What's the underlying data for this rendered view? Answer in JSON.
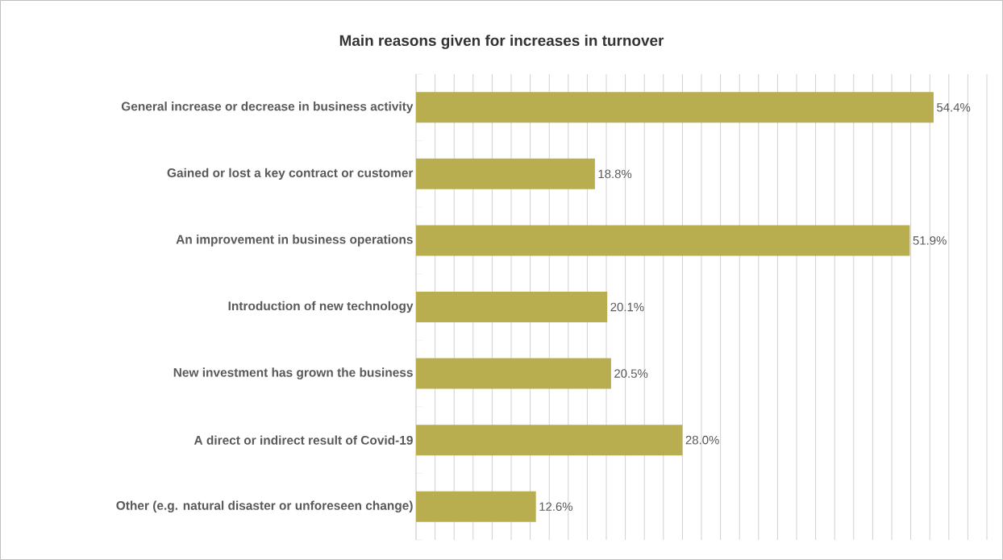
{
  "chart_data": {
    "type": "bar",
    "orientation": "horizontal",
    "title": "Main reasons given for increases in turnover",
    "categories": [
      "General increase or decrease in business activity",
      "Gained or lost a key contract or customer",
      "An improvement in business operations",
      "Introduction of new technology",
      "New investment has grown the business",
      "A direct or indirect result of Covid-19",
      "Other (e.g. natural disaster or unforeseen change)"
    ],
    "values": [
      54.4,
      18.8,
      51.9,
      20.1,
      20.5,
      28.0,
      12.6
    ],
    "value_labels": [
      "54.4%",
      "18.8%",
      "51.9%",
      "20.1%",
      "20.5%",
      "28.0%",
      "12.6%"
    ],
    "color": "#b8ad4f",
    "xlim": [
      0,
      60
    ],
    "grid": "x"
  }
}
